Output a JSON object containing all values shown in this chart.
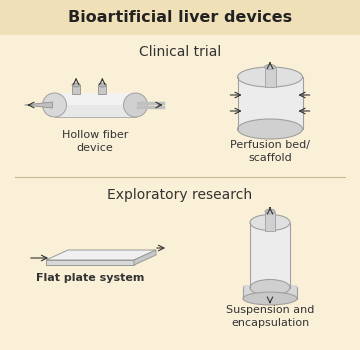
{
  "title": "Bioartificial liver devices",
  "title_bg": "#f0e0b8",
  "bg_color": "#faf0d8",
  "section1_label": "Clinical trial",
  "section2_label": "Exploratory research",
  "device1_label": "Hollow fiber\ndevice",
  "device2_label": "Perfusion bed/\nscaffold",
  "device3_label": "Flat plate system",
  "device4_label": "Suspension and\nencapsulation",
  "divider_color": "#c8b890",
  "text_color": "#333333",
  "lc": "#efefef",
  "mc": "#d8d8d8",
  "dc": "#a8a8a8",
  "shade": "#c0c0c0"
}
